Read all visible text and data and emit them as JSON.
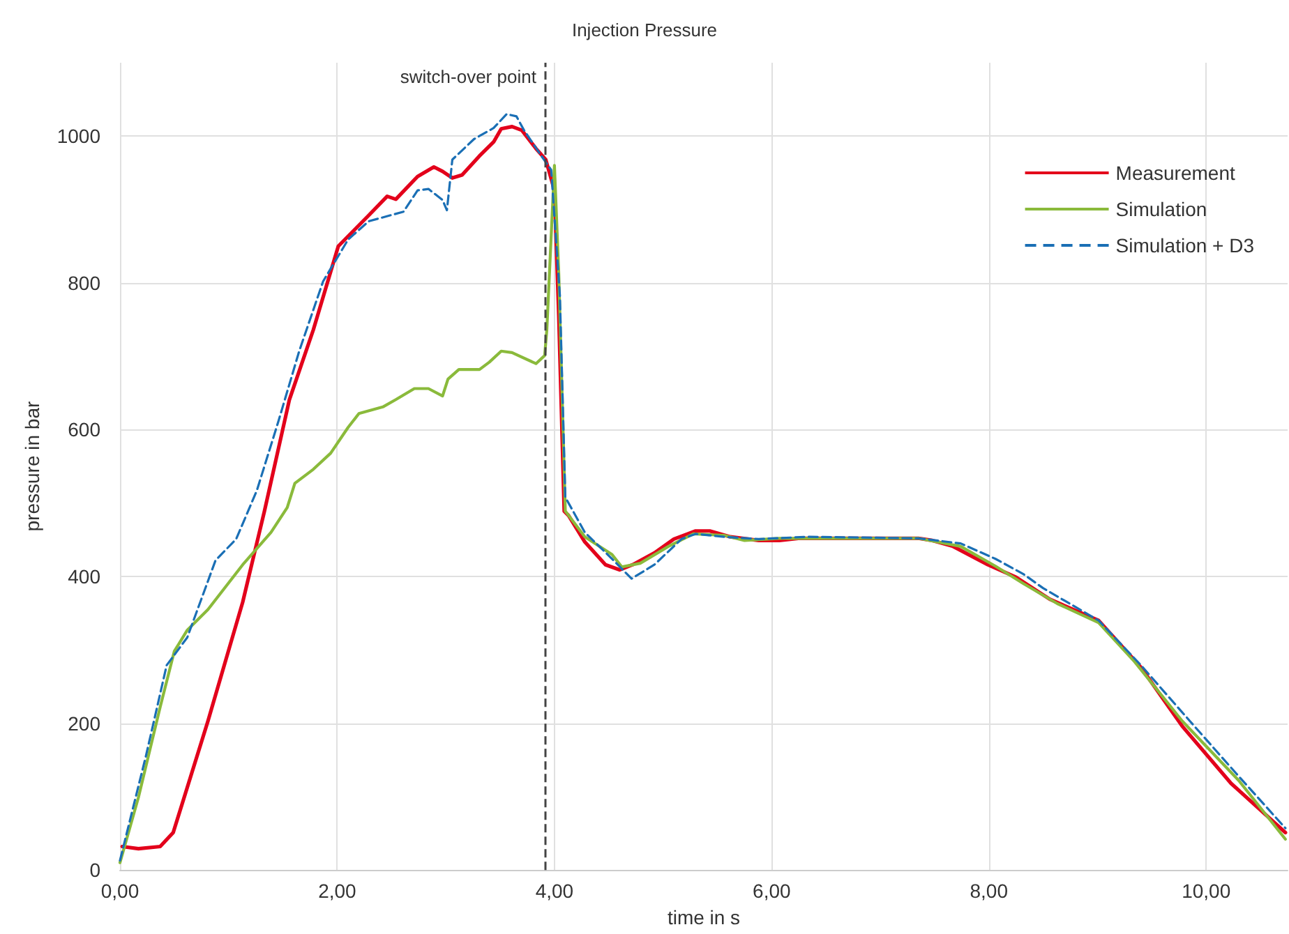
{
  "chart_data": {
    "type": "line",
    "title": "Injection Pressure",
    "xlabel": "time in s",
    "ylabel": "pressure in bar",
    "xlim": [
      0,
      10.75
    ],
    "xticks": [
      {
        "value": 0,
        "label": "0,00"
      },
      {
        "value": 2,
        "label": "2,00"
      },
      {
        "value": 4,
        "label": "4,00"
      },
      {
        "value": 6,
        "label": "6,00"
      },
      {
        "value": 8,
        "label": "8,00"
      },
      {
        "value": 10,
        "label": "10,00"
      }
    ],
    "ylim": [
      0,
      1100
    ],
    "yticks": [
      0,
      200,
      400,
      600,
      800,
      1000
    ],
    "grid": true,
    "legend": "top right",
    "marker": "none",
    "line_style": "solid",
    "ref_lines": [
      {
        "axis": "x",
        "value": 3.91,
        "label": "switch-over point",
        "color": "#444444",
        "line_style": "dashed"
      }
    ],
    "series": [
      {
        "name": "Measurement",
        "color": "#e3001b",
        "x": [
          0.02,
          0.17,
          0.37,
          0.49,
          0.81,
          1.13,
          1.33,
          1.56,
          1.78,
          2.01,
          2.29,
          2.46,
          2.54,
          2.74,
          2.89,
          2.97,
          3.06,
          3.15,
          3.31,
          3.44,
          3.51,
          3.61,
          3.7,
          3.83,
          3.92,
          4.0,
          4.04,
          4.09,
          4.13,
          4.28,
          4.47,
          4.6,
          4.72,
          4.92,
          5.1,
          5.3,
          5.43,
          5.62,
          5.88,
          6.07,
          6.26,
          6.58,
          7.35,
          7.48,
          7.67,
          7.99,
          8.25,
          8.56,
          9.01,
          9.4,
          9.78,
          10.23,
          10.73
        ],
        "values": [
          32,
          29,
          32,
          51,
          203,
          365,
          489,
          641,
          736,
          850,
          892,
          918,
          914,
          945,
          958,
          952,
          943,
          947,
          973,
          992,
          1010,
          1013,
          1008,
          983,
          968,
          926,
          755,
          489,
          483,
          447,
          416,
          409,
          416,
          432,
          451,
          462,
          462,
          454,
          449,
          449,
          452,
          452,
          452,
          449,
          441,
          416,
          399,
          369,
          340,
          276,
          196,
          118,
          51
        ]
      },
      {
        "name": "Simulation",
        "color": "#8aba3b",
        "x": [
          0.0,
          0.17,
          0.37,
          0.5,
          0.62,
          0.81,
          1.13,
          1.39,
          1.54,
          1.61,
          1.78,
          1.94,
          2.1,
          2.2,
          2.42,
          2.54,
          2.71,
          2.84,
          2.97,
          3.02,
          3.12,
          3.31,
          3.4,
          3.51,
          3.61,
          3.83,
          3.91,
          3.93,
          4.0,
          4.04,
          4.1,
          4.28,
          4.53,
          4.62,
          4.79,
          5.05,
          5.28,
          5.56,
          5.75,
          6.07,
          7.35,
          7.74,
          8.06,
          8.32,
          8.63,
          9.01,
          9.34,
          9.78,
          10.3,
          10.73
        ],
        "values": [
          10,
          99,
          222,
          298,
          327,
          355,
          416,
          460,
          494,
          527,
          546,
          568,
          603,
          622,
          631,
          641,
          656,
          656,
          646,
          669,
          682,
          682,
          692,
          707,
          705,
          690,
          701,
          736,
          960,
          812,
          489,
          454,
          430,
          413,
          418,
          441,
          458,
          456,
          449,
          452,
          452,
          441,
          414,
          390,
          363,
          337,
          284,
          203,
          122,
          42
        ]
      },
      {
        "name": "Simulation + D3",
        "color": "#1a6fb5",
        "line_style": "dashed",
        "x": [
          0.0,
          0.24,
          0.43,
          0.62,
          0.88,
          1.07,
          1.26,
          1.46,
          1.65,
          1.87,
          2.1,
          2.29,
          2.61,
          2.74,
          2.84,
          2.97,
          3.01,
          3.06,
          3.26,
          3.44,
          3.56,
          3.65,
          3.72,
          3.88,
          3.97,
          4.05,
          4.1,
          4.28,
          4.53,
          4.71,
          4.92,
          5.17,
          5.3,
          5.56,
          5.88,
          6.33,
          7.35,
          7.74,
          8.06,
          8.32,
          8.5,
          9.01,
          9.4,
          9.85,
          10.28,
          10.73
        ],
        "values": [
          13,
          156,
          279,
          317,
          422,
          451,
          517,
          612,
          707,
          802,
          859,
          884,
          897,
          926,
          928,
          913,
          899,
          968,
          996,
          1011,
          1030,
          1027,
          1008,
          973,
          954,
          783,
          508,
          460,
          424,
          397,
          416,
          451,
          458,
          454,
          451,
          454,
          452,
          445,
          424,
          403,
          384,
          340,
          279,
          203,
          131,
          57
        ]
      }
    ]
  }
}
